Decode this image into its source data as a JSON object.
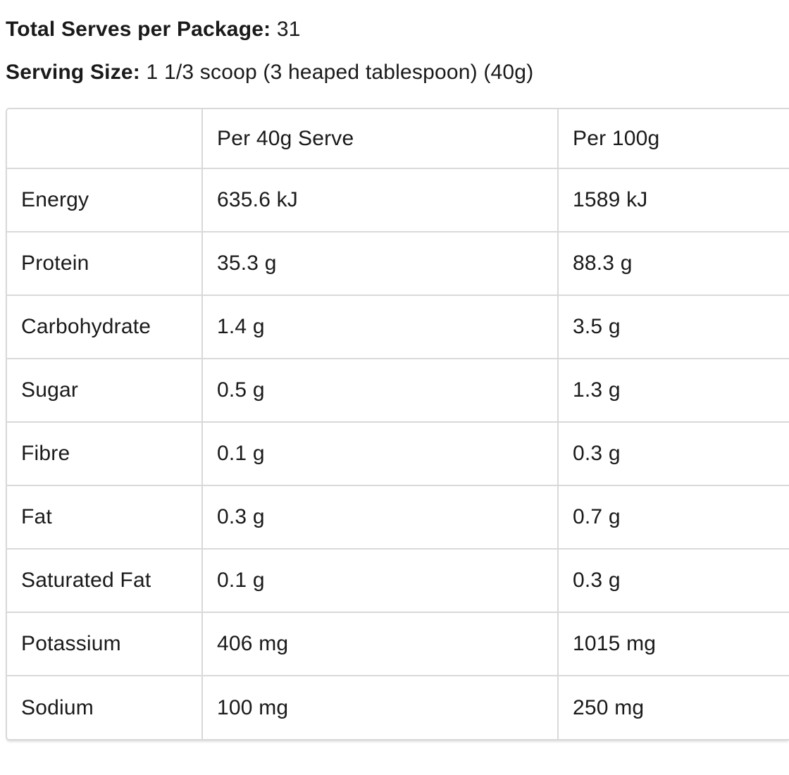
{
  "meta": {
    "total_serves_label": "Total Serves per Package:",
    "total_serves_value": " 31",
    "serving_size_label": "Serving Size:",
    "serving_size_value": " 1 1/3 scoop (3 heaped tablespoon) (40g)"
  },
  "table": {
    "columns": [
      "",
      "Per 40g Serve",
      "Per 100g"
    ],
    "rows": [
      {
        "nutrient": "Energy",
        "per_serve": "635.6 kJ",
        "per_100g": "1589 kJ"
      },
      {
        "nutrient": "Protein",
        "per_serve": "35.3 g",
        "per_100g": "88.3 g"
      },
      {
        "nutrient": "Carbohydrate",
        "per_serve": "1.4 g",
        "per_100g": "3.5 g"
      },
      {
        "nutrient": "Sugar",
        "per_serve": "0.5 g",
        "per_100g": "1.3 g"
      },
      {
        "nutrient": "Fibre",
        "per_serve": "0.1 g",
        "per_100g": "0.3 g"
      },
      {
        "nutrient": "Fat",
        "per_serve": "0.3 g",
        "per_100g": "0.7 g"
      },
      {
        "nutrient": "Saturated Fat",
        "per_serve": "0.1 g",
        "per_100g": "0.3 g"
      },
      {
        "nutrient": "Potassium",
        "per_serve": "406 mg",
        "per_100g": "1015 mg"
      },
      {
        "nutrient": "Sodium",
        "per_serve": "100 mg",
        "per_100g": "250 mg"
      }
    ]
  },
  "colors": {
    "text": "#1a1a1a",
    "border": "#d9d9d9",
    "background": "#ffffff"
  }
}
